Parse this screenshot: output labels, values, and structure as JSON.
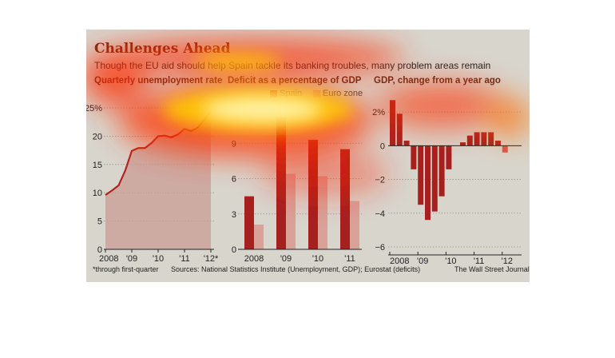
{
  "header": {
    "title": "Challenges Ahead",
    "subtitle": "Though the EU aid should help Spain tackle its banking troubles, many problem areas remain"
  },
  "colors": {
    "spain": "#a8201e",
    "euro": "#d9a19a",
    "line": "#b32420",
    "area": "#c99c94",
    "gdp": "#a8201e",
    "gdp_last": "#e05050",
    "background": "#d8d5cd"
  },
  "chart_data": [
    {
      "type": "area",
      "title": "Quarterly unemployment rate",
      "x": [
        "2008 Q1",
        "2008 Q2",
        "2008 Q3",
        "2008 Q4",
        "2009 Q1",
        "2009 Q2",
        "2009 Q3",
        "2009 Q4",
        "2010 Q1",
        "2010 Q2",
        "2010 Q3",
        "2010 Q4",
        "2011 Q1",
        "2011 Q2",
        "2011 Q3",
        "2011 Q4",
        "2012 Q1"
      ],
      "values": [
        9.6,
        10.4,
        11.3,
        13.9,
        17.4,
        17.9,
        17.9,
        18.8,
        20.0,
        20.1,
        19.8,
        20.3,
        21.3,
        20.9,
        21.5,
        22.9,
        24.4
      ],
      "yticks": [
        "0",
        "5",
        "10",
        "15",
        "20",
        "25%"
      ],
      "ylim": [
        0,
        25
      ],
      "xticks": [
        "2008",
        "'09",
        "'10",
        "'11",
        "'12*"
      ],
      "grid": true
    },
    {
      "type": "bar",
      "title": "Deficit as a percentage of GDP",
      "categories": [
        "2008",
        "'09",
        "'10",
        "'11"
      ],
      "series": [
        {
          "name": "Spain",
          "values": [
            4.5,
            11.2,
            9.3,
            8.5
          ]
        },
        {
          "name": "Euro zone",
          "values": [
            2.1,
            6.4,
            6.2,
            4.1
          ]
        }
      ],
      "yticks": [
        "0",
        "3",
        "6",
        "9"
      ],
      "ylim": [
        0,
        12
      ],
      "legend": "top-right",
      "grid": true
    },
    {
      "type": "bar",
      "title": "GDP, change from a year ago",
      "categories": [
        "2008 Q1",
        "2008 Q2",
        "2008 Q3",
        "2008 Q4",
        "2009 Q1",
        "2009 Q2",
        "2009 Q3",
        "2009 Q4",
        "2010 Q1",
        "2010 Q2",
        "2010 Q3",
        "2010 Q4",
        "2011 Q1",
        "2011 Q2",
        "2011 Q3",
        "2011 Q4",
        "2012 Q1"
      ],
      "values": [
        2.7,
        1.9,
        0.3,
        -1.4,
        -3.5,
        -4.4,
        -3.9,
        -3.0,
        -1.4,
        0.0,
        0.2,
        0.6,
        0.8,
        0.8,
        0.8,
        0.3,
        -0.4
      ],
      "yticks": [
        "2%",
        "0",
        "−2",
        "−4",
        "−6"
      ],
      "ylim": [
        -6,
        3
      ],
      "xticks": [
        "2008",
        "'09",
        "'10",
        "'11",
        "'12"
      ],
      "grid": true
    }
  ],
  "footer": {
    "footnote": "*through first-quarter",
    "sources": "Sources: National Statistics Institute (Unemployment, GDP); Eurostat (deficits)",
    "credit": "The Wall Street Journal"
  }
}
